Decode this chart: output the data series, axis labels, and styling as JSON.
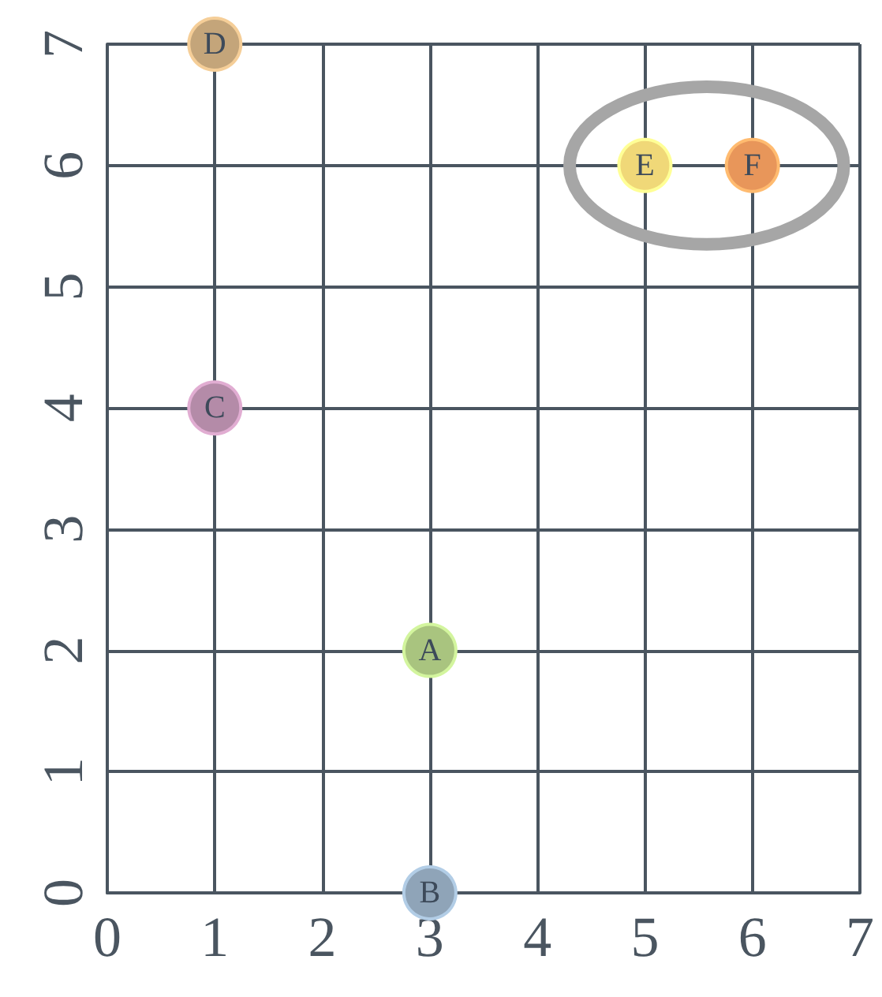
{
  "chart_data": {
    "type": "scatter",
    "xlim": [
      0,
      7
    ],
    "ylim": [
      0,
      7
    ],
    "xticks": [
      0,
      1,
      2,
      3,
      4,
      5,
      6,
      7
    ],
    "yticks": [
      0,
      1,
      2,
      3,
      4,
      5,
      6,
      7
    ],
    "grid": true,
    "legend": false,
    "marker": "circle",
    "series": [
      {
        "name": "A",
        "color": "#a9c47f",
        "x": [
          3
        ],
        "values": [
          2
        ]
      },
      {
        "name": "B",
        "color": "#8fa4b8",
        "x": [
          3
        ],
        "values": [
          0
        ]
      },
      {
        "name": "C",
        "color": "#b48ba8",
        "x": [
          1
        ],
        "values": [
          4
        ]
      },
      {
        "name": "D",
        "color": "#c4a57a",
        "x": [
          1
        ],
        "values": [
          7
        ]
      },
      {
        "name": "E",
        "color": "#f0d878",
        "x": [
          5
        ],
        "values": [
          6
        ]
      },
      {
        "name": "F",
        "color": "#e8965a",
        "x": [
          6
        ],
        "values": [
          6
        ]
      }
    ]
  }
}
